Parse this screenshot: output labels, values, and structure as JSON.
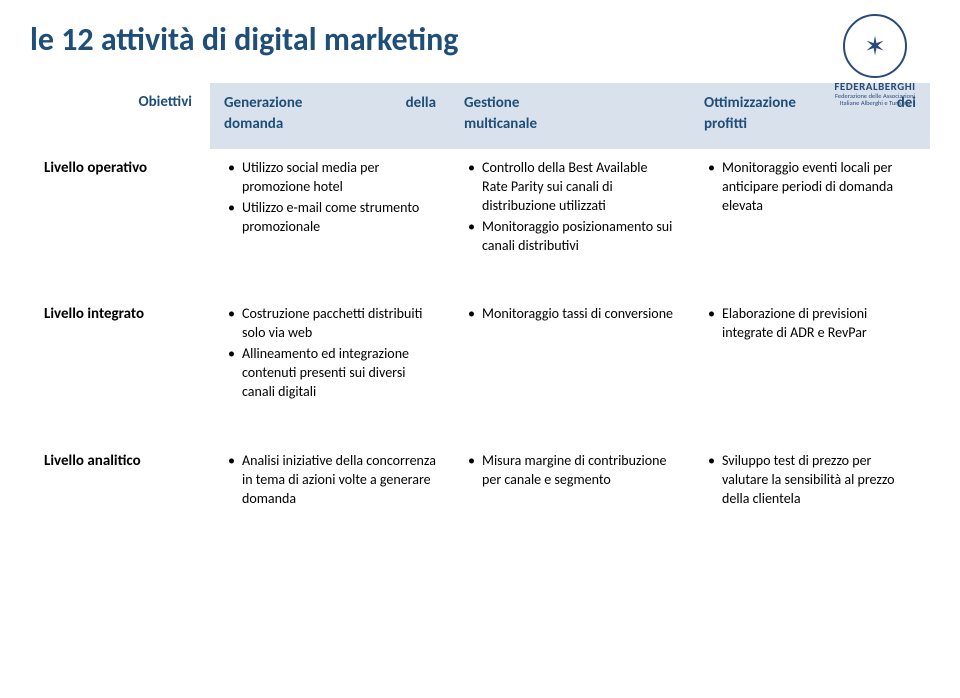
{
  "title": "le 12 attività di digital marketing",
  "logo": {
    "brand": "FEDERALBERGHI",
    "subline1": "Federazione delle Associazioni",
    "subline2": "Italiane Alberghi e Turismo"
  },
  "table": {
    "obiettivi_label": "Obiettivi",
    "headers": {
      "col1_line1": "Generazione",
      "col1_line1b": "della",
      "col1_line2": "domanda",
      "col2_line1": "Gestione",
      "col2_line2": "multicanale",
      "col3_line1": "Ottimizzazione",
      "col3_line1b": "dei",
      "col3_line2": "profitti"
    },
    "rows": {
      "operativo": {
        "label": "Livello operativo",
        "c1": [
          "Utilizzo social media per promozione hotel",
          "Utilizzo e-mail come strumento promozionale"
        ],
        "c2": [
          "Controllo della Best Available Rate Parity sui canali di distribuzione utilizzati",
          "Monitoraggio posizionamento sui canali distributivi"
        ],
        "c3": [
          "Monitoraggio eventi locali per anticipare periodi di domanda elevata"
        ]
      },
      "integrato": {
        "label": "Livello integrato",
        "c1": [
          "Costruzione pacchetti distribuiti solo via web",
          "Allineamento ed integrazione contenuti presenti sui diversi canali digitali"
        ],
        "c2": [
          "Monitoraggio tassi di conversione"
        ],
        "c3": [
          "Elaborazione di previsioni integrate di ADR e RevPar"
        ]
      },
      "analitico": {
        "label": "Livello analitico",
        "c1": [
          "Analisi iniziative della concorrenza in tema di azioni volte a generare domanda"
        ],
        "c2": [
          "Misura margine di contribuzione per canale e segmento"
        ],
        "c3": [
          "Sviluppo test di prezzo per valutare la sensibilità al prezzo della clientela"
        ]
      }
    }
  },
  "style": {
    "title_color": "#1f4e79",
    "header_bg": "#d9e2ec",
    "header_color": "#1f4e79",
    "body_text_color": "#000000",
    "title_fontsize": 32,
    "header_fontsize": 15,
    "label_fontsize": 15,
    "cell_fontsize": 14
  }
}
